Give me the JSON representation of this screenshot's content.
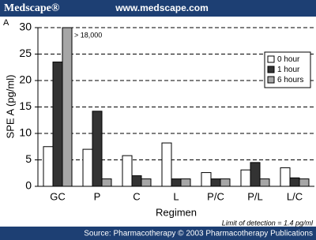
{
  "header": {
    "brand": "Medscape®",
    "url": "www.medscape.com"
  },
  "footer": "Source: Pharmacotherapy © 2003 Pharmacotherapy Publications",
  "chart_data": {
    "type": "bar",
    "panel_label": "A",
    "x_label": "Regimen",
    "y_label": "SPE A (pg/ml)",
    "annotation": "> 18,000",
    "note": "Limit of detection = 1.4 pg/ml",
    "categories": [
      "GC",
      "P",
      "C",
      "L",
      "P/C",
      "P/L",
      "L/C"
    ],
    "series": [
      {
        "name": "0 hour",
        "color": "#ffffff",
        "values": [
          7.5,
          7,
          5.8,
          8.2,
          2.6,
          3.1,
          3.5
        ]
      },
      {
        "name": "1 hour",
        "color": "#333333",
        "values": [
          23.5,
          14.2,
          2,
          1.4,
          1.4,
          4.5,
          1.6
        ]
      },
      {
        "name": "6 hours",
        "color": "#a6a6a6",
        "values": [
          30,
          1.4,
          1.4,
          1.4,
          1.4,
          1.4,
          1.4
        ]
      }
    ],
    "ylim": [
      0,
      30
    ],
    "yticks": [
      0,
      5,
      10,
      15,
      20,
      25,
      30
    ],
    "grid": true,
    "legend": "upper-right"
  }
}
